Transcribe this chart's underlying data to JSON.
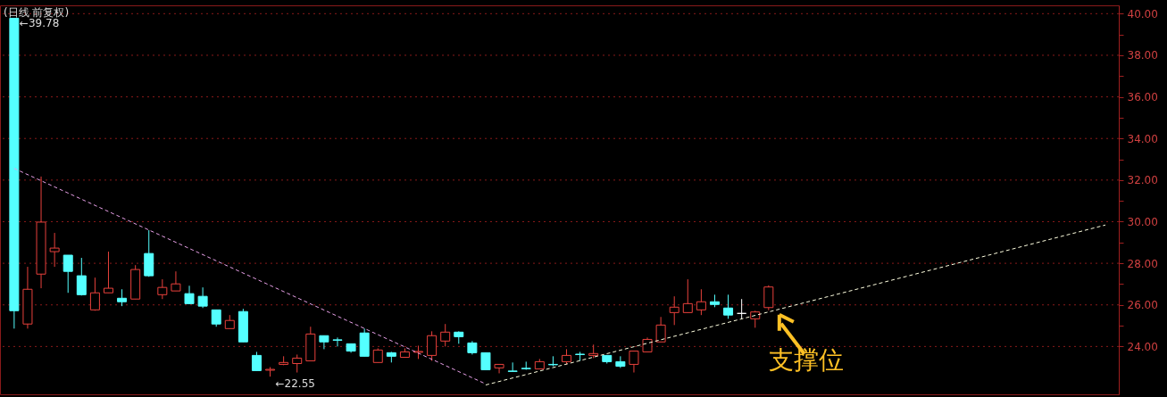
{
  "chart_data": {
    "type": "candlestick",
    "title": "(日线 前复权)",
    "categories": [
      null,
      null,
      null,
      null,
      null,
      null,
      null,
      null,
      null,
      null,
      null,
      null,
      null,
      null,
      null,
      null,
      null,
      null,
      null,
      null,
      null,
      null,
      null,
      null,
      null,
      null,
      null,
      null,
      null,
      null,
      null,
      null,
      null,
      null,
      null,
      null,
      null,
      null,
      null,
      null,
      null,
      null,
      null,
      null,
      null,
      null,
      null,
      null,
      null,
      null,
      null,
      null,
      null,
      null,
      null,
      null,
      null,
      null,
      null,
      null,
      null,
      null,
      null,
      null,
      null,
      null,
      null,
      null,
      null,
      null,
      null,
      null,
      null,
      null,
      null,
      null,
      null,
      null,
      null,
      null,
      null,
      null
    ],
    "ohlc": [
      [
        39.78,
        39.78,
        24.86,
        25.72
      ],
      [
        25.08,
        27.83,
        24.86,
        26.75
      ],
      [
        27.48,
        32.17,
        26.8,
        29.98
      ],
      [
        28.56,
        29.46,
        27.83,
        28.73
      ],
      [
        28.39,
        28.39,
        26.58,
        27.61
      ],
      [
        27.4,
        28.26,
        26.45,
        26.49
      ],
      [
        25.76,
        27.31,
        25.72,
        26.58
      ],
      [
        26.58,
        28.56,
        26.58,
        26.8
      ],
      [
        26.32,
        26.75,
        25.94,
        26.15
      ],
      [
        26.28,
        27.91,
        26.28,
        27.7
      ],
      [
        28.47,
        29.59,
        27.35,
        27.4
      ],
      [
        26.49,
        27.23,
        26.28,
        26.84
      ],
      [
        26.67,
        27.61,
        26.67,
        27.01
      ],
      [
        26.54,
        26.92,
        26.06,
        26.06
      ],
      [
        26.41,
        26.84,
        25.85,
        25.94
      ],
      [
        25.76,
        25.76,
        24.95,
        25.08
      ],
      [
        24.86,
        25.51,
        24.86,
        25.25
      ],
      [
        25.68,
        25.81,
        24.22,
        24.22
      ],
      [
        23.57,
        23.74,
        22.84,
        22.84
      ],
      [
        22.86,
        23.01,
        22.55,
        22.9
      ],
      [
        23.14,
        23.53,
        23.1,
        23.23
      ],
      [
        23.18,
        23.61,
        22.75,
        23.44
      ],
      [
        23.31,
        24.95,
        23.31,
        24.6
      ],
      [
        24.52,
        24.52,
        23.87,
        24.22
      ],
      [
        24.32,
        24.43,
        24.0,
        24.3
      ],
      [
        24.13,
        24.13,
        23.7,
        23.78
      ],
      [
        24.65,
        24.86,
        23.53,
        23.53
      ],
      [
        23.23,
        23.91,
        23.23,
        23.83
      ],
      [
        23.7,
        23.74,
        23.23,
        23.53
      ],
      [
        23.48,
        23.91,
        23.48,
        23.74
      ],
      [
        23.72,
        24.04,
        23.4,
        23.76
      ],
      [
        23.57,
        24.73,
        23.31,
        24.52
      ],
      [
        24.26,
        25.08,
        24.0,
        24.69
      ],
      [
        24.69,
        24.73,
        24.13,
        24.47
      ],
      [
        24.17,
        24.26,
        23.61,
        23.7
      ],
      [
        23.7,
        23.7,
        22.88,
        22.88
      ],
      [
        22.97,
        23.14,
        22.71,
        23.14
      ],
      [
        22.82,
        23.23,
        22.8,
        22.8
      ],
      [
        22.95,
        23.27,
        22.88,
        22.93
      ],
      [
        22.92,
        23.4,
        22.92,
        23.27
      ],
      [
        23.14,
        23.53,
        23.05,
        23.12
      ],
      [
        23.27,
        23.87,
        23.14,
        23.57
      ],
      [
        23.63,
        23.74,
        23.31,
        23.61
      ],
      [
        23.57,
        24.09,
        23.44,
        23.66
      ],
      [
        23.57,
        23.57,
        23.18,
        23.27
      ],
      [
        23.27,
        23.53,
        22.97,
        23.05
      ],
      [
        23.14,
        23.78,
        22.75,
        23.78
      ],
      [
        23.74,
        24.43,
        23.74,
        24.34
      ],
      [
        24.22,
        25.42,
        24.22,
        25.03
      ],
      [
        25.63,
        26.41,
        25.03,
        25.89
      ],
      [
        25.63,
        27.23,
        25.63,
        26.06
      ],
      [
        25.76,
        26.75,
        25.51,
        26.15
      ],
      [
        26.15,
        26.49,
        25.89,
        26.02
      ],
      [
        25.85,
        26.49,
        25.33,
        25.51
      ],
      [
        25.59,
        26.28,
        25.33,
        25.59
      ],
      [
        25.33,
        25.72,
        24.9,
        25.66
      ],
      [
        25.87,
        26.94,
        25.74,
        26.86
      ],
      null,
      null,
      null,
      null,
      null,
      null,
      null,
      null,
      null,
      null,
      null,
      null,
      null,
      null,
      null,
      null,
      null,
      null,
      null,
      null,
      null,
      null,
      null,
      null,
      null
    ],
    "colors": [
      "#54ffff",
      "#e8413c",
      "#e8413c",
      "#e8413c",
      "#54ffff",
      "#54ffff",
      "#e8413c",
      "#e8413c",
      "#54ffff",
      "#e8413c",
      "#54ffff",
      "#e8413c",
      "#e8413c",
      "#54ffff",
      "#54ffff",
      "#54ffff",
      "#e8413c",
      "#54ffff",
      "#54ffff",
      "#e8413c",
      "#e8413c",
      "#e8413c",
      "#e8413c",
      "#54ffff",
      "#54ffff",
      "#54ffff",
      "#54ffff",
      "#e8413c",
      "#54ffff",
      "#e8413c",
      "#e8413c",
      "#e8413c",
      "#e8413c",
      "#54ffff",
      "#54ffff",
      "#54ffff",
      "#e8413c",
      "#54ffff",
      "#54ffff",
      "#e8413c",
      "#54ffff",
      "#e8413c",
      "#54ffff",
      "#e8413c",
      "#54ffff",
      "#54ffff",
      "#e8413c",
      "#e8413c",
      "#e8413c",
      "#e8413c",
      "#e8413c",
      "#e8413c",
      "#54ffff",
      "#54ffff",
      "#ffffff",
      "#e8413c",
      "#e8413c",
      null,
      null,
      null,
      null,
      null,
      null,
      null,
      null,
      null,
      null,
      null,
      null,
      null,
      null,
      null,
      null,
      null,
      null,
      null,
      null,
      null,
      null,
      null,
      null,
      null
    ],
    "series": [
      {
        "type": "line",
        "color": "#e8a0e8",
        "line_style": "dashed",
        "values": [
          32.56,
          null,
          null,
          null,
          null,
          null,
          null,
          null,
          null,
          null,
          null,
          null,
          null,
          null,
          null,
          null,
          null,
          null,
          null,
          null,
          null,
          null,
          null,
          null,
          null,
          null,
          null,
          null,
          null,
          null,
          null,
          null,
          null,
          null,
          null,
          22.2,
          null,
          null,
          null,
          null,
          null,
          null,
          null,
          null,
          null,
          null,
          null,
          null,
          null,
          null,
          null,
          null,
          null,
          null,
          null,
          null,
          null,
          null,
          null,
          null,
          null,
          null,
          null,
          null,
          null,
          null,
          null,
          null,
          null,
          null,
          null,
          null,
          null,
          null,
          null,
          null,
          null,
          null,
          null,
          null,
          null,
          null
        ]
      },
      {
        "type": "line",
        "color": "#ffffe0",
        "line_style": "dashed",
        "values": [
          null,
          null,
          null,
          null,
          null,
          null,
          null,
          null,
          null,
          null,
          null,
          null,
          null,
          null,
          null,
          null,
          null,
          null,
          null,
          null,
          null,
          null,
          null,
          null,
          null,
          null,
          null,
          null,
          null,
          null,
          null,
          null,
          null,
          null,
          null,
          22.15,
          null,
          null,
          null,
          null,
          null,
          null,
          null,
          null,
          null,
          null,
          null,
          null,
          null,
          null,
          null,
          null,
          null,
          null,
          null,
          null,
          null,
          null,
          null,
          null,
          null,
          null,
          null,
          null,
          null,
          null,
          null,
          null,
          null,
          null,
          null,
          null,
          null,
          null,
          null,
          null,
          null,
          null,
          null,
          null,
          null,
          29.84
        ]
      }
    ],
    "ylim": [
      21.7,
      40.4
    ],
    "yticks": [
      {
        "value": 24,
        "label": "24.00"
      },
      {
        "value": 25,
        "label": null
      },
      {
        "value": 26,
        "label": "26.00"
      },
      {
        "value": 27,
        "label": null
      },
      {
        "value": 28,
        "label": "28.00"
      },
      {
        "value": 29,
        "label": null
      },
      {
        "value": 30,
        "label": "30.00"
      },
      {
        "value": 31,
        "label": null
      },
      {
        "value": 32,
        "label": "32.00"
      },
      {
        "value": 33,
        "label": null
      },
      {
        "value": 34,
        "label": "34.00"
      },
      {
        "value": 35,
        "label": null
      },
      {
        "value": 36,
        "label": "36.00"
      },
      {
        "value": 37,
        "label": null
      },
      {
        "value": 38,
        "label": "38.00"
      },
      {
        "value": 39,
        "label": null
      },
      {
        "value": 40,
        "label": "40.00"
      }
    ],
    "grid": "y",
    "annotations": [
      "←39.78",
      "←22.55",
      "支撑位"
    ]
  }
}
